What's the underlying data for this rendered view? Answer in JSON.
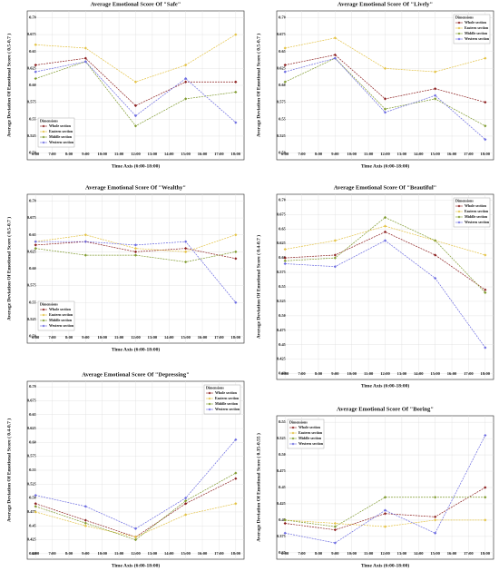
{
  "chart_data": [
    {
      "type": "line",
      "title": "Average Emotional Score Of  \"Safe\"",
      "xlabel": "Time Axis (6:00-18:00)",
      "ylabel": "Average Deviation Of Emotional Score ( 0.5-0.7 )",
      "x": [
        6,
        9,
        12,
        15,
        18
      ],
      "xlim": [
        5.5,
        18.5
      ],
      "xticks": [
        {
          "value": 6,
          "label": "6:00"
        },
        {
          "value": 7,
          "label": "7:00"
        },
        {
          "value": 8,
          "label": "8:00"
        },
        {
          "value": 9,
          "label": "9:00"
        },
        {
          "value": 10,
          "label": "10:00"
        },
        {
          "value": 11,
          "label": "11:00"
        },
        {
          "value": 12,
          "label": "12:00"
        },
        {
          "value": 13,
          "label": "13:00"
        },
        {
          "value": 14,
          "label": "14:00"
        },
        {
          "value": 15,
          "label": "15:00"
        },
        {
          "value": 16,
          "label": "16:00"
        },
        {
          "value": 17,
          "label": "17:00"
        },
        {
          "value": 18,
          "label": "18:00"
        }
      ],
      "ylim": [
        0.49,
        0.71
      ],
      "yticks": [
        {
          "value": 0.5,
          "label": "0.50"
        },
        0.525,
        0.55,
        0.575,
        {
          "value": 0.6,
          "label": "0.60"
        },
        0.625,
        0.65,
        0.675,
        {
          "value": 0.7,
          "label": "0.70"
        }
      ],
      "grid": true,
      "legend_title": "Dimensions",
      "legend": "lower left",
      "series": [
        {
          "name": "Whole section",
          "color": "#8b1e1e",
          "values": [
            0.63,
            0.64,
            0.57,
            0.605,
            0.605
          ]
        },
        {
          "name": "Eastern section",
          "color": "#e3c244",
          "values": [
            0.66,
            0.655,
            0.605,
            0.63,
            0.675
          ]
        },
        {
          "name": "Middle section",
          "color": "#7f9a2e",
          "values": [
            0.61,
            0.635,
            0.54,
            0.58,
            0.59
          ]
        },
        {
          "name": "Western section",
          "color": "#6b6be0",
          "values": [
            0.62,
            0.635,
            0.555,
            0.61,
            0.545
          ]
        }
      ]
    },
    {
      "type": "line",
      "title": "Average Emotional Score Of  \"Lively\"",
      "xlabel": "Time Axis (6:00-18:00)",
      "ylabel": "Average Deviation Of Emotional Score ( 0.5-0.7 )",
      "x": [
        6,
        9,
        12,
        15,
        18
      ],
      "xlim": [
        5.5,
        18.5
      ],
      "xticks": [
        {
          "value": 6,
          "label": "6:00"
        },
        {
          "value": 7,
          "label": "7:00"
        },
        {
          "value": 8,
          "label": "8:00"
        },
        {
          "value": 9,
          "label": "9:00"
        },
        {
          "value": 10,
          "label": "10:00"
        },
        {
          "value": 11,
          "label": "11:00"
        },
        {
          "value": 12,
          "label": "12:00"
        },
        {
          "value": 13,
          "label": "13:00"
        },
        {
          "value": 14,
          "label": "14:00"
        },
        {
          "value": 15,
          "label": "15:00"
        },
        {
          "value": 16,
          "label": "16:00"
        },
        {
          "value": 17,
          "label": "17:00"
        },
        {
          "value": 18,
          "label": "18:00"
        }
      ],
      "ylim": [
        0.49,
        0.71
      ],
      "yticks": [
        {
          "value": 0.5,
          "label": "0.50"
        },
        0.525,
        0.55,
        0.575,
        {
          "value": 0.6,
          "label": "0.60"
        },
        0.625,
        0.65,
        0.675,
        {
          "value": 0.7,
          "label": "0.70"
        }
      ],
      "grid": true,
      "legend_title": "Dimensions",
      "legend": "upper right",
      "series": [
        {
          "name": "Whole section",
          "color": "#8b1e1e",
          "values": [
            0.63,
            0.645,
            0.58,
            0.595,
            0.575
          ]
        },
        {
          "name": "Eastern section",
          "color": "#e3c244",
          "values": [
            0.655,
            0.67,
            0.625,
            0.62,
            0.64
          ]
        },
        {
          "name": "Middle section",
          "color": "#7f9a2e",
          "values": [
            0.605,
            0.64,
            0.565,
            0.58,
            0.54
          ]
        },
        {
          "name": "Western section",
          "color": "#6b6be0",
          "values": [
            0.62,
            0.64,
            0.56,
            0.585,
            0.52
          ]
        }
      ]
    },
    {
      "type": "line",
      "title": "Average Emotional Score Of  \"Wealthy\"",
      "xlabel": "Time Axis (6:00-18:00)",
      "ylabel": "Average Deviation Of Emotional Score ( 0.5-0.7 )",
      "x": [
        6,
        9,
        12,
        15,
        18
      ],
      "xlim": [
        5.5,
        18.5
      ],
      "xticks": [
        {
          "value": 6,
          "label": "6:00"
        },
        {
          "value": 7,
          "label": "7:00"
        },
        {
          "value": 8,
          "label": "8:00"
        },
        {
          "value": 9,
          "label": "9:00"
        },
        {
          "value": 10,
          "label": "10:00"
        },
        {
          "value": 11,
          "label": "11:00"
        },
        {
          "value": 12,
          "label": "12:00"
        },
        {
          "value": 13,
          "label": "13:00"
        },
        {
          "value": 14,
          "label": "14:00"
        },
        {
          "value": 15,
          "label": "15:00"
        },
        {
          "value": 16,
          "label": "16:00"
        },
        {
          "value": 17,
          "label": "17:00"
        },
        {
          "value": 18,
          "label": "18:00"
        }
      ],
      "ylim": [
        0.49,
        0.71
      ],
      "yticks": [
        {
          "value": 0.5,
          "label": "0.50"
        },
        0.525,
        0.55,
        0.575,
        {
          "value": 0.6,
          "label": "0.60"
        },
        0.625,
        0.65,
        0.675,
        {
          "value": 0.7,
          "label": "0.70"
        }
      ],
      "grid": true,
      "legend_title": "Dimensions",
      "legend": "lower left",
      "series": [
        {
          "name": "Whole section",
          "color": "#8b1e1e",
          "values": [
            0.635,
            0.64,
            0.625,
            0.63,
            0.615
          ]
        },
        {
          "name": "Eastern section",
          "color": "#e3c244",
          "values": [
            0.64,
            0.65,
            0.63,
            0.625,
            0.65
          ]
        },
        {
          "name": "Middle section",
          "color": "#7f9a2e",
          "values": [
            0.63,
            0.62,
            0.62,
            0.61,
            0.625
          ]
        },
        {
          "name": "Western section",
          "color": "#6b6be0",
          "values": [
            0.64,
            0.64,
            0.635,
            0.64,
            0.55
          ]
        }
      ]
    },
    {
      "type": "line",
      "title": "Average Emotional Score Of  \"Beautiful\"",
      "xlabel": "Time Axis (6:00-18:00)",
      "ylabel": "Average Deviation Of Emotional Score ( 0.4-0.7 )",
      "x": [
        6,
        9,
        12,
        15,
        18
      ],
      "xlim": [
        5.5,
        18.5
      ],
      "xticks": [
        {
          "value": 6,
          "label": "6:00"
        },
        {
          "value": 7,
          "label": "7:00"
        },
        {
          "value": 8,
          "label": "8:00"
        },
        {
          "value": 9,
          "label": "9:00"
        },
        {
          "value": 10,
          "label": "10:00"
        },
        {
          "value": 11,
          "label": "11:00"
        },
        {
          "value": 12,
          "label": "12:00"
        },
        {
          "value": 13,
          "label": "13:00"
        },
        {
          "value": 14,
          "label": "14:00"
        },
        {
          "value": 15,
          "label": "15:00"
        },
        {
          "value": 16,
          "label": "16:00"
        },
        {
          "value": 17,
          "label": "17:00"
        },
        {
          "value": 18,
          "label": "18:00"
        }
      ],
      "ylim": [
        0.39,
        0.71
      ],
      "yticks": [
        {
          "value": 0.4,
          "label": "0.40"
        },
        0.425,
        0.45,
        0.475,
        {
          "value": 0.5,
          "label": "0.50"
        },
        0.525,
        0.55,
        0.575,
        {
          "value": 0.6,
          "label": "0.60"
        },
        0.625,
        0.65,
        0.675,
        {
          "value": 0.7,
          "label": "0.70"
        }
      ],
      "grid": true,
      "legend_title": "Dimensions",
      "legend": "upper right",
      "series": [
        {
          "name": "Whole section",
          "color": "#8b1e1e",
          "values": [
            0.6,
            0.605,
            0.645,
            0.605,
            0.545
          ]
        },
        {
          "name": "Eastern section",
          "color": "#e3c244",
          "values": [
            0.615,
            0.63,
            0.655,
            0.63,
            0.605
          ]
        },
        {
          "name": "Middle section",
          "color": "#7f9a2e",
          "values": [
            0.595,
            0.6,
            0.67,
            0.63,
            0.54
          ]
        },
        {
          "name": "Western section",
          "color": "#6b6be0",
          "values": [
            0.59,
            0.585,
            0.63,
            0.565,
            0.445
          ]
        }
      ]
    },
    {
      "type": "line",
      "title": "Average Emotional Score Of  \"Depressing\"",
      "xlabel": "Time Axis (6:00-18:00)",
      "ylabel": "Average Deviation Of Emotional Score ( 0.4-0.7 )",
      "x": [
        6,
        9,
        12,
        15,
        18
      ],
      "xlim": [
        5.5,
        18.5
      ],
      "xticks": [
        {
          "value": 6,
          "label": "6:00"
        },
        {
          "value": 7,
          "label": "7:00"
        },
        {
          "value": 8,
          "label": "8:00"
        },
        {
          "value": 9,
          "label": "9:00"
        },
        {
          "value": 10,
          "label": "10:00"
        },
        {
          "value": 11,
          "label": "11:00"
        },
        {
          "value": 12,
          "label": "12:00"
        },
        {
          "value": 13,
          "label": "13:00"
        },
        {
          "value": 14,
          "label": "14:00"
        },
        {
          "value": 15,
          "label": "15:00"
        },
        {
          "value": 16,
          "label": "16:00"
        },
        {
          "value": 17,
          "label": "17:00"
        },
        {
          "value": 18,
          "label": "18:00"
        }
      ],
      "ylim": [
        0.39,
        0.71
      ],
      "yticks": [
        {
          "value": 0.4,
          "label": "0.40"
        },
        0.425,
        0.45,
        0.475,
        {
          "value": 0.5,
          "label": "0.50"
        },
        0.525,
        0.55,
        0.575,
        {
          "value": 0.6,
          "label": "0.60"
        },
        0.625,
        0.65,
        0.675,
        {
          "value": 0.7,
          "label": "0.70"
        }
      ],
      "grid": true,
      "legend_title": "Dimensions",
      "legend": "upper right",
      "series": [
        {
          "name": "Whole section",
          "color": "#8b1e1e",
          "values": [
            0.49,
            0.46,
            0.43,
            0.49,
            0.535
          ]
        },
        {
          "name": "Eastern section",
          "color": "#e3c244",
          "values": [
            0.475,
            0.45,
            0.43,
            0.47,
            0.49
          ]
        },
        {
          "name": "Middle section",
          "color": "#7f9a2e",
          "values": [
            0.485,
            0.455,
            0.425,
            0.495,
            0.545
          ]
        },
        {
          "name": "Western section",
          "color": "#6b6be0",
          "values": [
            0.505,
            0.485,
            0.445,
            0.5,
            0.605
          ]
        }
      ]
    },
    {
      "type": "line",
      "title": "Average Emotional Score Of  \"Boring\"",
      "xlabel": "Time Axis (6:00-18:00)",
      "ylabel": "Average Deviation Of Emotional Score  ( 0.35-0.55 )",
      "x": [
        6,
        9,
        12,
        15,
        18
      ],
      "xlim": [
        5.5,
        18.5
      ],
      "xticks": [
        {
          "value": 6,
          "label": "6:00"
        },
        {
          "value": 7,
          "label": "7:00"
        },
        {
          "value": 8,
          "label": "8:00"
        },
        {
          "value": 9,
          "label": "9:00"
        },
        {
          "value": 10,
          "label": "10:00"
        },
        {
          "value": 11,
          "label": "11:00"
        },
        {
          "value": 12,
          "label": "12:00"
        },
        {
          "value": 13,
          "label": "13:00"
        },
        {
          "value": 14,
          "label": "14:00"
        },
        {
          "value": 15,
          "label": "15:00"
        },
        {
          "value": 16,
          "label": "16:00"
        },
        {
          "value": 17,
          "label": "17:00"
        },
        {
          "value": 18,
          "label": "18:00"
        }
      ],
      "ylim": [
        0.34,
        0.56
      ],
      "yticks": [
        0.35,
        0.375,
        {
          "value": 0.4,
          "label": "0.40"
        },
        0.425,
        0.45,
        0.475,
        {
          "value": 0.5,
          "label": "0.50"
        },
        0.525,
        0.55
      ],
      "grid": true,
      "legend_title": "Dimensions",
      "legend": "upper left",
      "series": [
        {
          "name": "Whole section",
          "color": "#8b1e1e",
          "values": [
            0.395,
            0.385,
            0.41,
            0.405,
            0.45
          ]
        },
        {
          "name": "Eastern section",
          "color": "#e3c244",
          "values": [
            0.4,
            0.395,
            0.39,
            0.4,
            0.4
          ]
        },
        {
          "name": "Middle section",
          "color": "#7f9a2e",
          "values": [
            0.4,
            0.39,
            0.435,
            0.435,
            0.435
          ]
        },
        {
          "name": "Western section",
          "color": "#6b6be0",
          "values": [
            0.38,
            0.365,
            0.415,
            0.38,
            0.53
          ]
        }
      ]
    }
  ]
}
